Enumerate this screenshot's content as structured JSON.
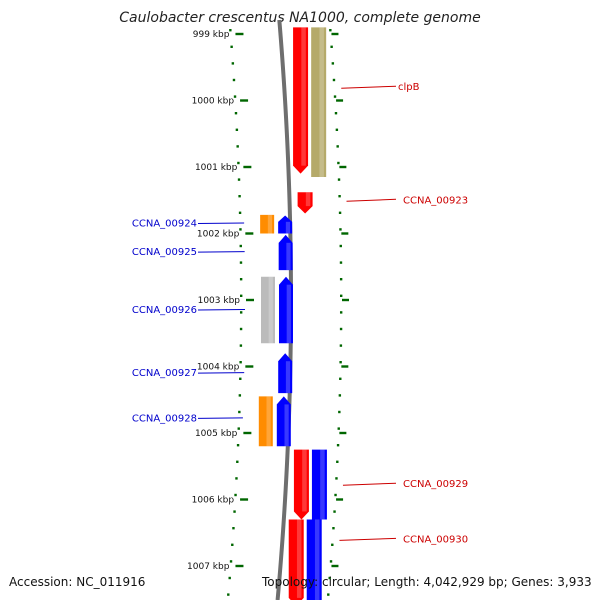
{
  "title": "Caulobacter crescentus NA1000, complete genome",
  "accession": "Accession: NC_011916",
  "topology": {
    "topology": "Topology: circular",
    "length": "Length: 4,042,929 bp",
    "genes": "Genes: 3,933"
  },
  "colors": {
    "forward": "#ff0000",
    "reverse": "#0000ff",
    "orange": "#ff8c00",
    "gray": "#bbbbbb",
    "khaki": "#b5aa6a",
    "tick": "#006600",
    "label_red": "#cc0000",
    "label_blue": "#0000cc"
  },
  "scale": {
    "unit": "kbp",
    "ticks": [
      {
        "kbp": 999,
        "label": "999 kbp"
      },
      {
        "kbp": 1000,
        "label": "1000 kbp"
      },
      {
        "kbp": 1001,
        "label": "1001 kbp"
      },
      {
        "kbp": 1002,
        "label": "1002 kbp"
      },
      {
        "kbp": 1003,
        "label": "1003 kbp"
      },
      {
        "kbp": 1004,
        "label": "1004 kbp"
      },
      {
        "kbp": 1005,
        "label": "1005 kbp"
      },
      {
        "kbp": 1006,
        "label": "1006 kbp"
      },
      {
        "kbp": 1007,
        "label": "1007 kbp"
      }
    ]
  },
  "features": [
    {
      "track": "forward-outer",
      "color": "khaki",
      "start_kbp": 998.9,
      "end_kbp": 1001.15,
      "arrow": false
    },
    {
      "track": "forward-inner",
      "color": "forward",
      "start_kbp": 998.9,
      "end_kbp": 1001.1,
      "arrow": true
    },
    {
      "track": "forward-inner",
      "color": "forward",
      "start_kbp": 1001.38,
      "end_kbp": 1001.7,
      "arrow": true
    },
    {
      "track": "reverse-outer",
      "color": "orange",
      "start_kbp": 1001.72,
      "end_kbp": 1002.0,
      "arrow": false
    },
    {
      "track": "reverse-inner",
      "color": "reverse",
      "start_kbp": 1001.73,
      "end_kbp": 1002.0,
      "arrow": true
    },
    {
      "track": "reverse-inner",
      "color": "reverse",
      "start_kbp": 1002.02,
      "end_kbp": 1002.55,
      "arrow": true
    },
    {
      "track": "reverse-outer",
      "color": "gray",
      "start_kbp": 1002.65,
      "end_kbp": 1003.65,
      "arrow": false
    },
    {
      "track": "reverse-inner",
      "color": "reverse",
      "start_kbp": 1002.65,
      "end_kbp": 1003.65,
      "arrow": true
    },
    {
      "track": "reverse-inner",
      "color": "reverse",
      "start_kbp": 1003.8,
      "end_kbp": 1004.4,
      "arrow": true
    },
    {
      "track": "reverse-outer",
      "color": "orange",
      "start_kbp": 1004.45,
      "end_kbp": 1005.2,
      "arrow": false
    },
    {
      "track": "reverse-inner",
      "color": "reverse",
      "start_kbp": 1004.45,
      "end_kbp": 1005.2,
      "arrow": true
    },
    {
      "track": "forward-inner",
      "color": "forward",
      "start_kbp": 1005.25,
      "end_kbp": 1006.3,
      "arrow": true
    },
    {
      "track": "forward-outer",
      "color": "reverse",
      "start_kbp": 1005.25,
      "end_kbp": 1006.3,
      "arrow": false
    },
    {
      "track": "forward-inner",
      "color": "forward",
      "start_kbp": 1006.3,
      "end_kbp": 1007.6,
      "arrow": true
    },
    {
      "track": "forward-outer",
      "color": "reverse",
      "start_kbp": 1006.3,
      "end_kbp": 1007.6,
      "arrow": false
    }
  ],
  "labels": [
    {
      "text": "clpB",
      "side": "right",
      "kbp": 999.8,
      "color": "label_red"
    },
    {
      "text": "CCNA_00923",
      "side": "right",
      "kbp": 1001.5,
      "color": "label_red"
    },
    {
      "text": "CCNA_00924",
      "side": "left",
      "kbp": 1001.85,
      "color": "label_blue"
    },
    {
      "text": "CCNA_00925",
      "side": "left",
      "kbp": 1002.28,
      "color": "label_blue"
    },
    {
      "text": "CCNA_00926",
      "side": "left",
      "kbp": 1003.15,
      "color": "label_blue"
    },
    {
      "text": "CCNA_00927",
      "side": "left",
      "kbp": 1004.1,
      "color": "label_blue"
    },
    {
      "text": "CCNA_00928",
      "side": "left",
      "kbp": 1004.78,
      "color": "label_blue"
    },
    {
      "text": "CCNA_00929",
      "side": "right",
      "kbp": 1005.77,
      "color": "label_red"
    },
    {
      "text": "CCNA_00930",
      "side": "right",
      "kbp": 1006.6,
      "color": "label_red"
    }
  ]
}
